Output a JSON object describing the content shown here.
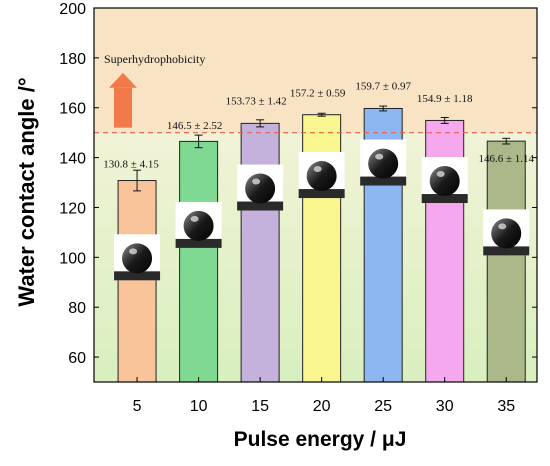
{
  "chart_data": {
    "type": "bar",
    "categories": [
      "5",
      "10",
      "15",
      "20",
      "25",
      "30",
      "35"
    ],
    "values": [
      130.8,
      146.5,
      153.73,
      157.2,
      159.7,
      154.9,
      146.6
    ],
    "errors": [
      4.15,
      2.52,
      1.42,
      0.59,
      0.97,
      1.18,
      1.14
    ],
    "value_labels": [
      "130.8 ± 4.15",
      "146.5 ± 2.52",
      "153.73 ± 1.42",
      "157.2 ± 0.59",
      "159.7 ± 0.97",
      "154.9 ± 1.18",
      "146.6 ± 1.14"
    ],
    "bar_colors": [
      "#f9c49a",
      "#7fd992",
      "#c4b2dc",
      "#f9f58f",
      "#8db7f1",
      "#f6a8ef",
      "#aab88a"
    ],
    "xlabel": "Pulse energy / μJ",
    "ylabel": "Water contact angle /°",
    "ylim": [
      50,
      200
    ],
    "yticks": [
      60,
      80,
      100,
      120,
      140,
      160,
      180,
      200
    ],
    "threshold": 150,
    "threshold_label": "Superhydrophobicity",
    "colors": {
      "upper_region": "#f8e4c4",
      "lower_region_top": "#f1f3d6",
      "lower_region_bottom": "#d8efbf",
      "threshold_line": "#e8604a",
      "arrow": "#f27a4a"
    },
    "droplet_images": 7
  }
}
